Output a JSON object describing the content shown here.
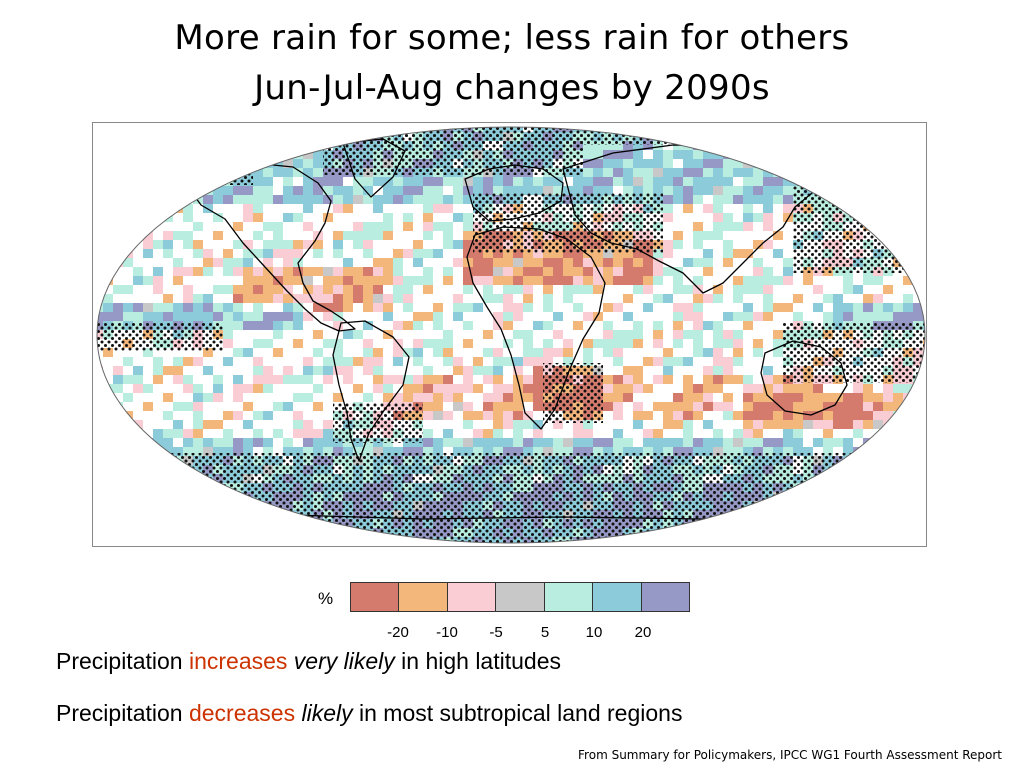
{
  "title": {
    "line1": "More rain for some; less rain for others",
    "line2": "Jun-Jul-Aug changes by 2090s"
  },
  "legend": {
    "unit": "%",
    "ticks": [
      "-20",
      "-10",
      "-5",
      "5",
      "10",
      "20"
    ],
    "colors": [
      "#d47b6e",
      "#f3b77c",
      "#f9cdd3",
      "#c8c8c8",
      "#b8ede0",
      "#8ccbd9",
      "#9698c6"
    ]
  },
  "statements": [
    {
      "prefix": "Precipitation ",
      "keyword": "increases",
      "qualifier": "very likely",
      "suffix": " in high latitudes"
    },
    {
      "prefix": "Precipitation ",
      "keyword": "decreases",
      "qualifier": "likely",
      "suffix": " in most subtropical land regions"
    }
  ],
  "source": "From Summary for Policymakers, IPCC WG1 Fourth Assessment Report",
  "colors": {
    "highlight": "#cc3300",
    "stipple": "#111111",
    "coastline": "#000000"
  }
}
